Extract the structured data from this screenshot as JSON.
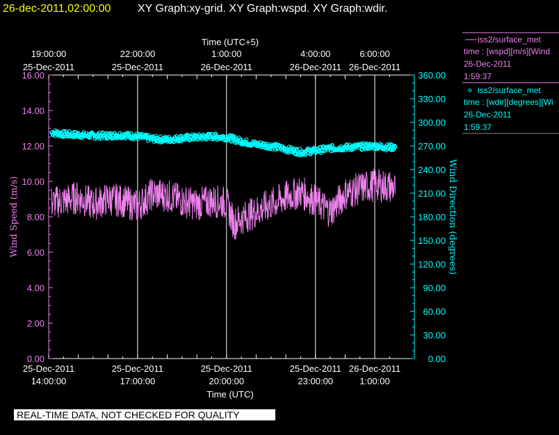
{
  "header": {
    "datetime": "26-dec-2011,02:00:00",
    "graphs": "XY Graph:xy-grid.  XY Graph:wspd.  XY Graph:wdir."
  },
  "colors": {
    "wspd": "#ee82ee",
    "wdir": "#00ffff",
    "datetime": "#ffff00"
  },
  "legend": [
    {
      "marker": "line",
      "name": "iss2/surface_met",
      "var": "time : [wspd][m/s][Wind",
      "date": "26-Dec-2011",
      "time": "1:59:37"
    },
    {
      "marker": "o",
      "name": "iss2/surface_met",
      "var": "time : [wdir][degrees][Wi",
      "date": "26-Dec-2011",
      "time": "1:59:37"
    }
  ],
  "notice": "REAL-TIME DATA, NOT CHECKED FOR QUALITY",
  "chart_data": {
    "type": "line",
    "title": "",
    "xlabel_bottom": "Time (UTC)",
    "xlabel_top": "Time (UTC+5)",
    "ylabel_left": "Wind Speed (m/s)",
    "ylabel_right": "Wind Direction (degrees)",
    "x_unit": "hours since 25-Dec-2011 14:00 UTC",
    "xlim": [
      0,
      11.75
    ],
    "ylim_left": [
      0,
      16
    ],
    "ylim_right": [
      0,
      360
    ],
    "grid": "vertical",
    "legend_position": "top-right",
    "x_ticks_bottom": [
      {
        "x": 0,
        "l1": "25-Dec-2011",
        "l2": "14:00:00"
      },
      {
        "x": 3,
        "l1": "25-Dec-2011",
        "l2": "17:00:00"
      },
      {
        "x": 6,
        "l1": "25-Dec-2011",
        "l2": "20:00:00"
      },
      {
        "x": 9,
        "l1": "25-Dec-2011",
        "l2": "23:00:00"
      },
      {
        "x": 11,
        "l1": "26-Dec-2011",
        "l2": "1:00:00"
      }
    ],
    "x_ticks_top": [
      {
        "x": 0,
        "l1": "19:00:00",
        "l2": "25-Dec-2011"
      },
      {
        "x": 3,
        "l1": "22:00:00",
        "l2": "25-Dec-2011"
      },
      {
        "x": 6,
        "l1": "1:00:00",
        "l2": "26-Dec-2011"
      },
      {
        "x": 9,
        "l1": "4:00:00",
        "l2": "26-Dec-2011"
      },
      {
        "x": 11,
        "l1": "6:00:00",
        "l2": "26-Dec-2011"
      }
    ],
    "y_ticks_left": [
      "0.00",
      "2.00",
      "4.00",
      "6.00",
      "8.00",
      "10.00",
      "12.00",
      "14.00",
      "16.00"
    ],
    "y_ticks_right": [
      "0.00",
      "30.00",
      "60.00",
      "90.00",
      "120.00",
      "150.00",
      "180.00",
      "210.00",
      "240.00",
      "270.00",
      "300.00",
      "330.00",
      "360.00"
    ],
    "series": [
      {
        "name": "wspd",
        "axis": "left",
        "style": "line",
        "x": [
          0.1,
          0.5,
          1,
          1.5,
          2,
          2.5,
          3,
          3.5,
          4,
          4.5,
          5,
          5.5,
          6,
          6.25,
          6.5,
          7,
          7.5,
          8,
          8.5,
          9,
          9.5,
          10,
          10.5,
          11,
          11.5,
          11.7
        ],
        "y": [
          8.8,
          8.9,
          9.1,
          8.7,
          9.0,
          8.9,
          8.6,
          9.3,
          9.2,
          8.9,
          8.7,
          8.9,
          8.8,
          7.6,
          7.9,
          8.3,
          8.7,
          9.1,
          9.4,
          8.9,
          8.3,
          9.3,
          9.6,
          9.8,
          9.7,
          9.6
        ]
      },
      {
        "name": "wdir",
        "axis": "right",
        "style": "circles",
        "x": [
          0.1,
          0.5,
          1,
          1.5,
          2,
          2.5,
          3,
          3.5,
          4,
          4.5,
          5,
          5.5,
          6,
          6.5,
          7,
          7.5,
          8,
          8.5,
          9,
          9.5,
          10,
          10.5,
          11,
          11.5,
          11.7
        ],
        "y": [
          287,
          285,
          284,
          283,
          283,
          284,
          282,
          279,
          278,
          280,
          281,
          282,
          281,
          276,
          272,
          270,
          266,
          262,
          264,
          267,
          268,
          269,
          270,
          268,
          269
        ]
      }
    ]
  }
}
